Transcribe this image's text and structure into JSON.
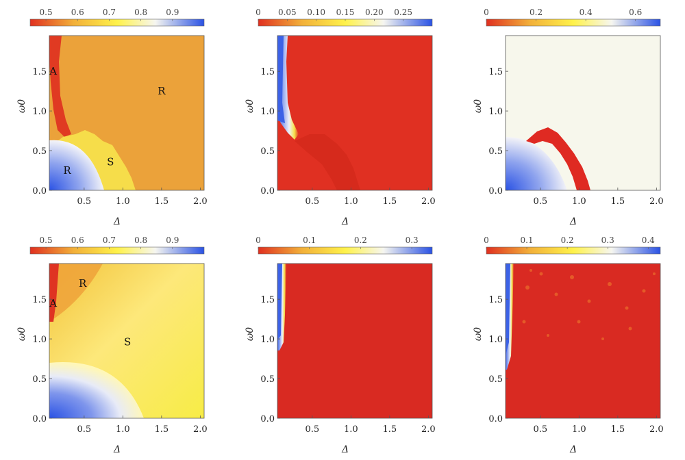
{
  "chart_data": [
    {
      "type": "heatmap",
      "xlabel": "Δ",
      "ylabel": "ω0",
      "xlim": [
        0.05,
        2.05
      ],
      "ylim": [
        0.0,
        1.95
      ],
      "x_ticks": [
        "0.5",
        "1.0",
        "1.5",
        "2.0"
      ],
      "y_ticks": [
        "0.0",
        "0.5",
        "1.0",
        "1.5"
      ],
      "colorbar": {
        "ticks": [
          "0.5",
          "0.6",
          "0.7",
          "0.8",
          "0.9"
        ],
        "range": [
          0.45,
          1.0
        ],
        "colormap": [
          "#e03020",
          "#f2b03a",
          "#fff24a",
          "#f6f6f0",
          "#2a52e4"
        ]
      },
      "region_labels": [
        {
          "text": "A",
          "x": 0.1,
          "y": 1.5
        },
        {
          "text": "R",
          "x": 1.5,
          "y": 1.25
        },
        {
          "text": "R",
          "x": 0.28,
          "y": 0.25
        },
        {
          "text": "S",
          "x": 0.84,
          "y": 0.36
        }
      ],
      "grid": false
    },
    {
      "type": "heatmap",
      "xlabel": "Δ",
      "ylabel": "ω0",
      "xlim": [
        0.05,
        2.05
      ],
      "ylim": [
        0.0,
        1.95
      ],
      "x_ticks": [
        "0.5",
        "1.0",
        "1.5",
        "2.0"
      ],
      "y_ticks": [
        "0.0",
        "0.5",
        "1.0",
        "1.5"
      ],
      "colorbar": {
        "ticks": [
          "0",
          "0.05",
          "0.10",
          "0.15",
          "0.20",
          "0.25"
        ],
        "range": [
          0.0,
          0.3
        ],
        "colormap": [
          "#e03020",
          "#f2b03a",
          "#fff24a",
          "#f6f6f0",
          "#2a52e4"
        ]
      },
      "region_labels": [],
      "grid": false
    },
    {
      "type": "heatmap",
      "xlabel": "Δ",
      "ylabel": "ω0",
      "xlim": [
        0.05,
        2.05
      ],
      "ylim": [
        0.0,
        1.95
      ],
      "x_ticks": [
        "0.5",
        "1.0",
        "1.5",
        "2.0"
      ],
      "y_ticks": [
        "0.0",
        "0.5",
        "1.0",
        "1.5"
      ],
      "colorbar": {
        "ticks": [
          "0",
          "0.2",
          "0.4",
          "0.6"
        ],
        "range": [
          0.0,
          0.7
        ],
        "colormap": [
          "#e03020",
          "#f2b03a",
          "#fff24a",
          "#f6f6f0",
          "#2a52e4"
        ]
      },
      "region_labels": [],
      "grid": false
    },
    {
      "type": "heatmap",
      "xlabel": "Δ",
      "ylabel": "ω0",
      "xlim": [
        0.05,
        2.05
      ],
      "ylim": [
        0.0,
        1.95
      ],
      "x_ticks": [
        "0.5",
        "1.0",
        "1.5",
        "2.0"
      ],
      "y_ticks": [
        "0.0",
        "0.5",
        "1.0",
        "1.5"
      ],
      "colorbar": {
        "ticks": [
          "0.5",
          "0.6",
          "0.7",
          "0.8",
          "0.9"
        ],
        "range": [
          0.45,
          1.0
        ],
        "colormap": [
          "#e03020",
          "#f2b03a",
          "#fff24a",
          "#f6f6f0",
          "#2a52e4"
        ]
      },
      "region_labels": [
        {
          "text": "A",
          "x": 0.1,
          "y": 1.45
        },
        {
          "text": "R",
          "x": 0.48,
          "y": 1.7
        },
        {
          "text": "S",
          "x": 1.06,
          "y": 0.96
        }
      ],
      "grid": false
    },
    {
      "type": "heatmap",
      "xlabel": "Δ",
      "ylabel": "ω0",
      "xlim": [
        0.05,
        2.05
      ],
      "ylim": [
        0.0,
        1.95
      ],
      "x_ticks": [
        "0.5",
        "1.0",
        "1.5",
        "2.0"
      ],
      "y_ticks": [
        "0.0",
        "0.5",
        "1.0",
        "1.5"
      ],
      "colorbar": {
        "ticks": [
          "0",
          "0.1",
          "0.2",
          "0.3"
        ],
        "range": [
          0.0,
          0.34
        ],
        "colormap": [
          "#e03020",
          "#f2b03a",
          "#fff24a",
          "#f6f6f0",
          "#2a52e4"
        ]
      },
      "region_labels": [],
      "grid": false
    },
    {
      "type": "heatmap",
      "xlabel": "Δ",
      "ylabel": "ω0",
      "xlim": [
        0.05,
        2.05
      ],
      "ylim": [
        0.0,
        1.95
      ],
      "x_ticks": [
        "0.5",
        "1.0",
        "1.5",
        "2.0"
      ],
      "y_ticks": [
        "0.0",
        "0.5",
        "1.0",
        "1.5"
      ],
      "colorbar": {
        "ticks": [
          "0",
          "0.1",
          "0.2",
          "0.3",
          "0.4"
        ],
        "range": [
          0.0,
          0.43
        ],
        "colormap": [
          "#e03020",
          "#f2b03a",
          "#fff24a",
          "#f6f6f0",
          "#2a52e4"
        ]
      },
      "region_labels": [],
      "grid": false
    }
  ]
}
